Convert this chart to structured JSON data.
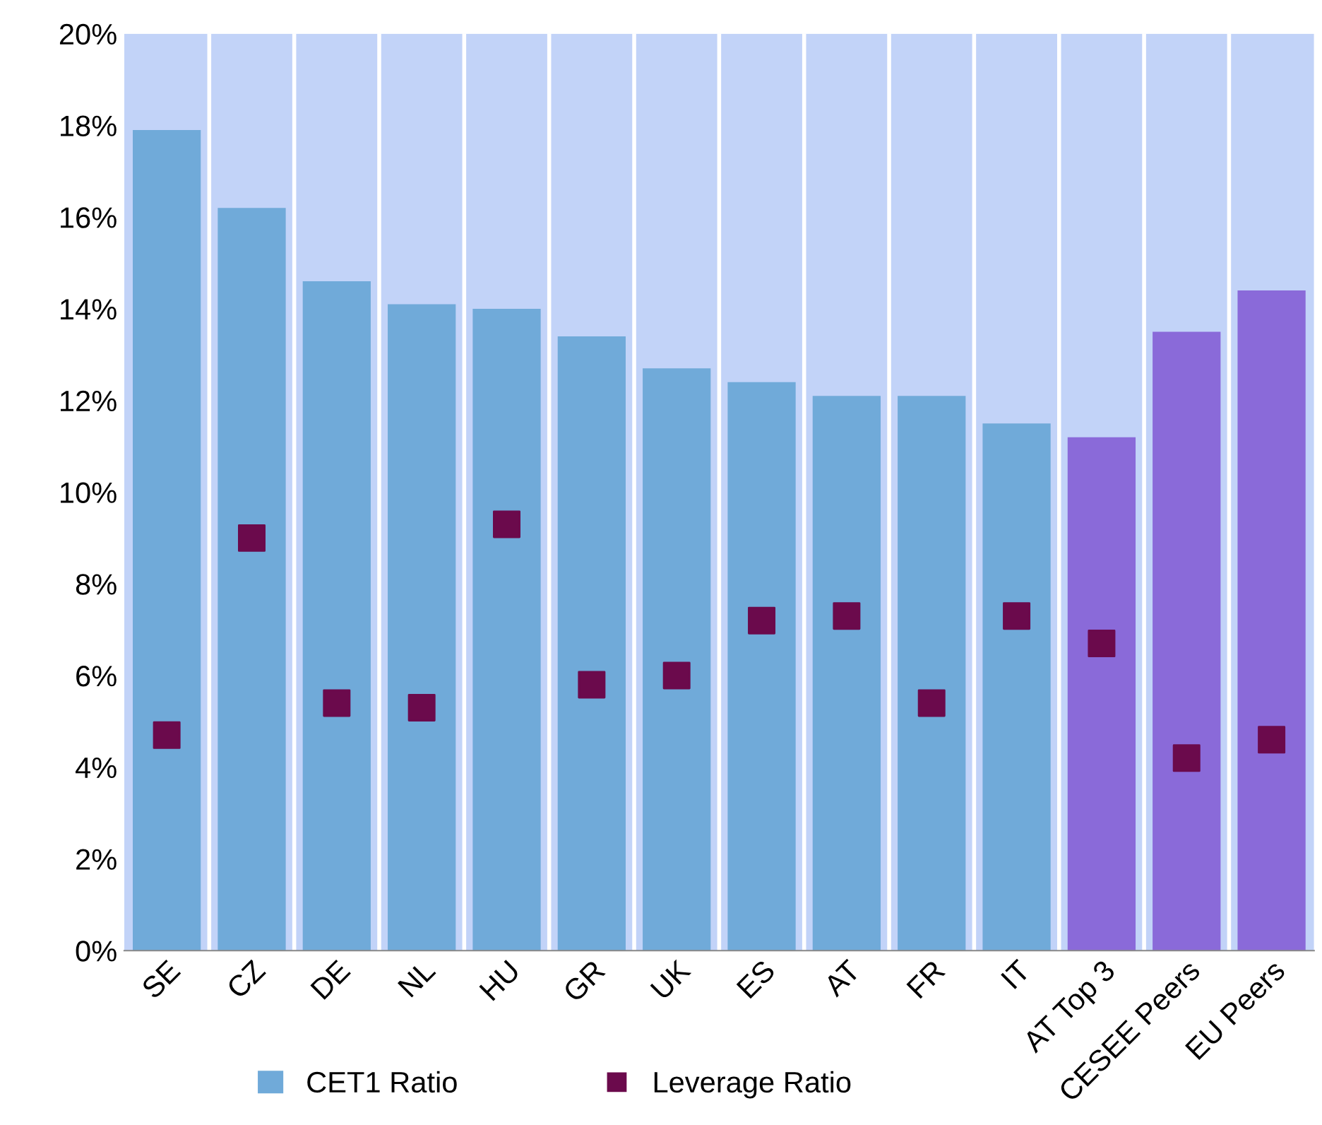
{
  "chart_data": {
    "type": "bar",
    "categories": [
      "SE",
      "CZ",
      "DE",
      "NL",
      "HU",
      "GR",
      "UK",
      "ES",
      "AT",
      "FR",
      "IT",
      "AT Top 3",
      "CESEE Peers",
      "EU Peers"
    ],
    "series": [
      {
        "name": "CET1 Ratio",
        "type": "bar",
        "color": "#70aad9",
        "colors": [
          "#70aad9",
          "#70aad9",
          "#70aad9",
          "#70aad9",
          "#70aad9",
          "#70aad9",
          "#70aad9",
          "#70aad9",
          "#70aad9",
          "#70aad9",
          "#70aad9",
          "#8a6ad9",
          "#8a6ad9",
          "#8a6ad9"
        ],
        "values": [
          17.9,
          16.2,
          14.6,
          14.1,
          14.0,
          13.4,
          12.7,
          12.4,
          12.1,
          12.1,
          11.5,
          11.2,
          13.5,
          14.4
        ]
      },
      {
        "name": "Leverage Ratio",
        "type": "scatter",
        "color": "#6b0a4c",
        "marker": "square",
        "x": [
          "SE",
          "CZ",
          "DE",
          "NL",
          "HU",
          "GR",
          "UK",
          "ES",
          "AT",
          "FR",
          "IT",
          "AT Top 3",
          "CESEE Peers",
          "EU Peers"
        ],
        "values": [
          4.7,
          9.0,
          5.4,
          5.3,
          9.3,
          5.8,
          6.0,
          7.2,
          7.3,
          5.4,
          7.3,
          6.7,
          4.2,
          4.6
        ]
      }
    ],
    "ylim": [
      0,
      20
    ],
    "yticks": [
      {
        "value": 0,
        "label": "0%"
      },
      {
        "value": 2,
        "label": "2%"
      },
      {
        "value": 4,
        "label": "4%"
      },
      {
        "value": 6,
        "label": "6%"
      },
      {
        "value": 8,
        "label": "8%"
      },
      {
        "value": 10,
        "label": "10%"
      },
      {
        "value": 12,
        "label": "12%"
      },
      {
        "value": 14,
        "label": "14%"
      },
      {
        "value": 16,
        "label": "16%"
      },
      {
        "value": 18,
        "label": "18%"
      },
      {
        "value": 20,
        "label": "20%"
      }
    ],
    "bands": [
      {
        "axis": "y",
        "from": 0,
        "to": 20,
        "color": "#c2d3f8"
      }
    ],
    "grid": "x",
    "legend": "bottom"
  }
}
